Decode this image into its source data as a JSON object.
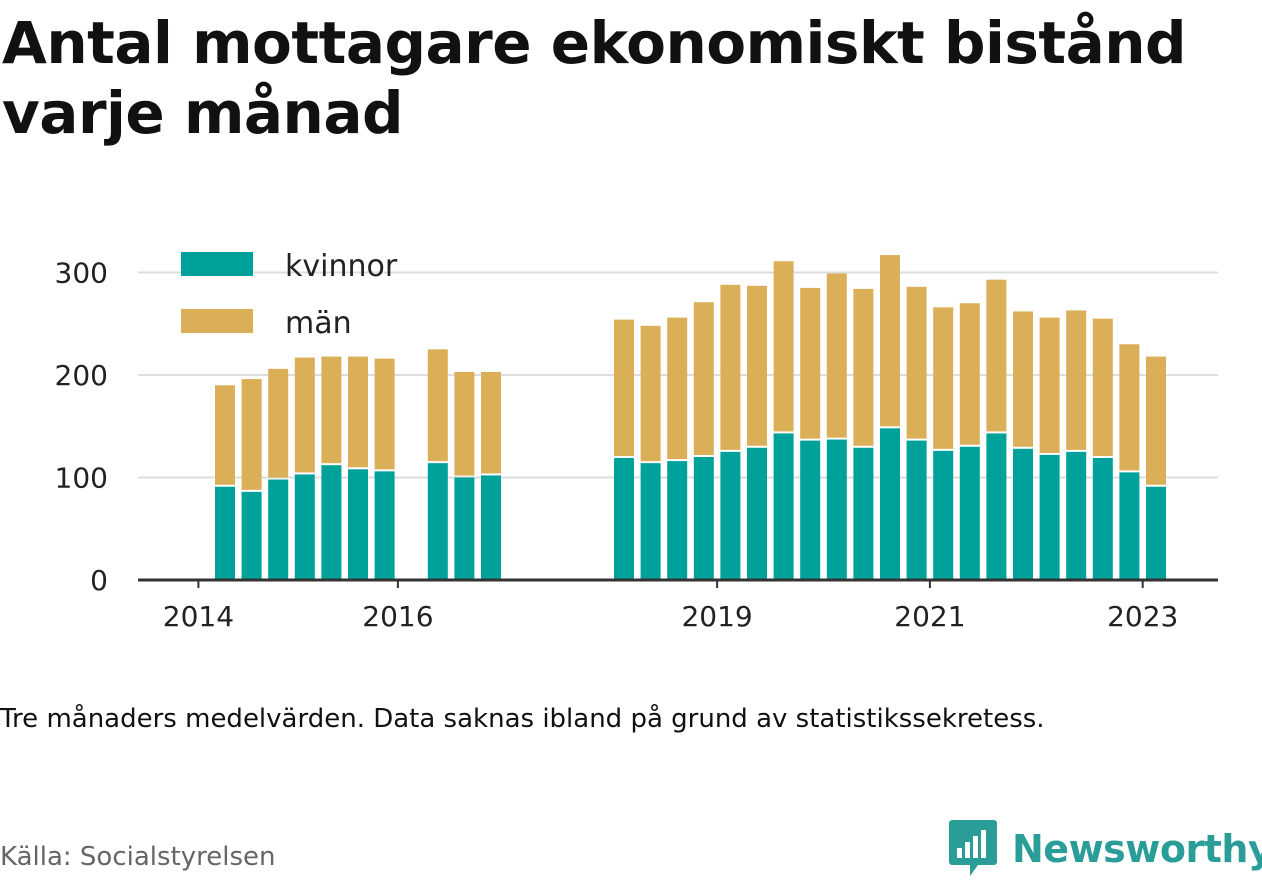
{
  "title": "Antal mottagare ekonomiskt bistånd varje månad",
  "note": "Tre månaders medelvärden. Data saknas ibland på grund av statistikssekretess.",
  "source": "Källa: Socialstyrelsen",
  "brand": {
    "name": "Newsworthy",
    "color": "#2a9d98"
  },
  "chart_data": {
    "type": "bar",
    "stacked": true,
    "title": "Antal mottagare ekonomiskt bistånd varje månad",
    "xlabel": "",
    "ylabel": "",
    "ylim": [
      0,
      320
    ],
    "yticks": [
      0,
      100,
      200,
      300
    ],
    "xticks": [
      "2014",
      "2016",
      "2019",
      "2021",
      "2023"
    ],
    "grid": true,
    "legend_position": "top-left",
    "categories": [
      "2014-Q2",
      "2014-Q3",
      "2014-Q4",
      "2015-Q1",
      "2015-Q2",
      "2015-Q3",
      "2015-Q4",
      "2016-Q1",
      "2016-Q2",
      "2016-Q3",
      "2016-Q4",
      "2017-Q1",
      "2017-Q2",
      "2017-Q3",
      "2017-Q4",
      "2018-Q1",
      "2018-Q2",
      "2018-Q3",
      "2018-Q4",
      "2019-Q1",
      "2019-Q2",
      "2019-Q3",
      "2019-Q4",
      "2020-Q1",
      "2020-Q2",
      "2020-Q3",
      "2020-Q4",
      "2021-Q1",
      "2021-Q2",
      "2021-Q3",
      "2021-Q4",
      "2022-Q1",
      "2022-Q2",
      "2022-Q3",
      "2022-Q4",
      "2023-Q1"
    ],
    "series": [
      {
        "name": "kvinnor",
        "color": "#00a19a",
        "values": [
          91,
          86,
          98,
          103,
          112,
          108,
          106,
          null,
          114,
          100,
          102,
          null,
          null,
          null,
          null,
          119,
          114,
          116,
          120,
          125,
          129,
          143,
          136,
          137,
          129,
          148,
          136,
          126,
          130,
          143,
          128,
          122,
          125,
          119,
          105,
          91
        ]
      },
      {
        "name": "män",
        "color": "#dbae58",
        "values": [
          99,
          110,
          108,
          114,
          106,
          110,
          110,
          null,
          111,
          103,
          101,
          null,
          null,
          null,
          null,
          135,
          134,
          140,
          151,
          163,
          158,
          168,
          149,
          162,
          155,
          169,
          150,
          140,
          140,
          150,
          134,
          134,
          138,
          136,
          125,
          127
        ]
      }
    ]
  }
}
